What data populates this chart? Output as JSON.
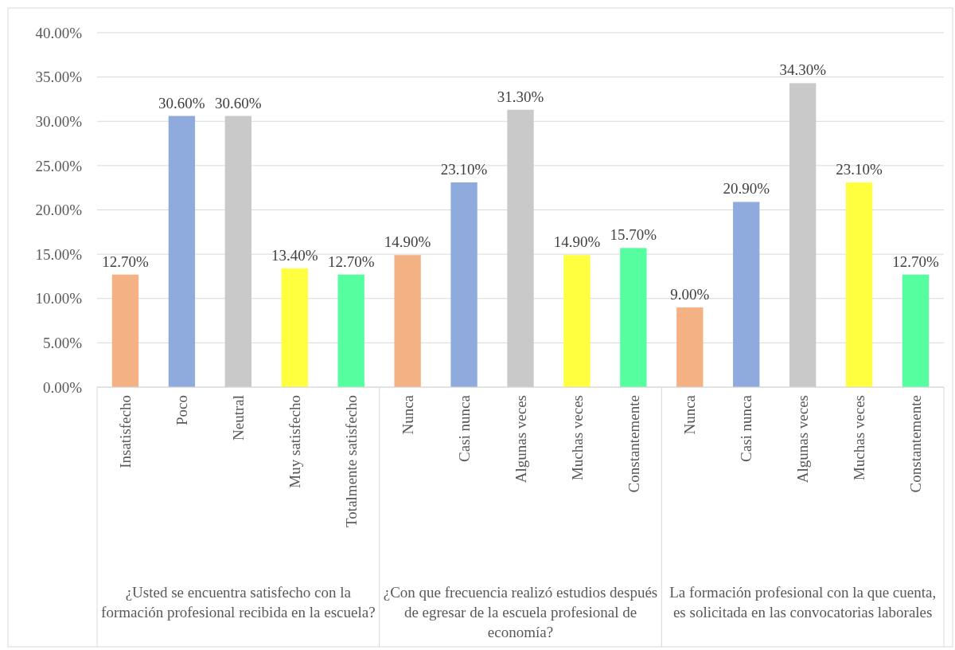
{
  "chart_data": {
    "type": "bar",
    "categories": [
      "Insatisfecho",
      "Poco",
      "Neutral",
      "Muy satisfecho",
      "Totalmente satisfecho",
      "Nunca",
      "Casi nunca",
      "Algunas veces",
      "Muchas veces",
      "Constantemente",
      "Nunca",
      "Casi nunca",
      "Algunas veces",
      "Muchas veces",
      "Constantemente"
    ],
    "values": [
      12.7,
      30.6,
      30.6,
      13.4,
      12.7,
      14.9,
      23.1,
      31.3,
      14.9,
      15.7,
      9.0,
      20.9,
      34.3,
      23.1,
      12.7
    ],
    "colors": [
      "#f4b183",
      "#8faadc",
      "#c9c9c9",
      "#ffff3f",
      "#55ff9f",
      "#f4b183",
      "#8faadc",
      "#c9c9c9",
      "#ffff3f",
      "#55ff9f",
      "#f4b183",
      "#8faadc",
      "#c9c9c9",
      "#ffff3f",
      "#55ff9f"
    ],
    "value_labels": [
      "12.70%",
      "30.60%",
      "30.60%",
      "13.40%",
      "12.70%",
      "14.90%",
      "23.10%",
      "31.30%",
      "14.90%",
      "15.70%",
      "9.00%",
      "20.90%",
      "34.30%",
      "23.10%",
      "12.70%"
    ],
    "ylim": [
      0,
      40
    ],
    "yticks": [
      {
        "value": 0,
        "label": "0.00%"
      },
      {
        "value": 5,
        "label": "5.00%"
      },
      {
        "value": 10,
        "label": "10.00%"
      },
      {
        "value": 15,
        "label": "15.00%"
      },
      {
        "value": 20,
        "label": "20.00%"
      },
      {
        "value": 25,
        "label": "25.00%"
      },
      {
        "value": 30,
        "label": "30.00%"
      },
      {
        "value": 35,
        "label": "35.00%"
      },
      {
        "value": 40,
        "label": "40.00%"
      }
    ],
    "grid": "y",
    "annotations": [
      "¿Usted se encuentra satisfecho con la formación profesional recibida en la escuela?",
      "¿Con que frecuencia realizó estudios después de egresar de la escuela profesional de economía?",
      "La formación profesional con la que cuenta, es solicitada en las convocatorias laborales"
    ]
  }
}
